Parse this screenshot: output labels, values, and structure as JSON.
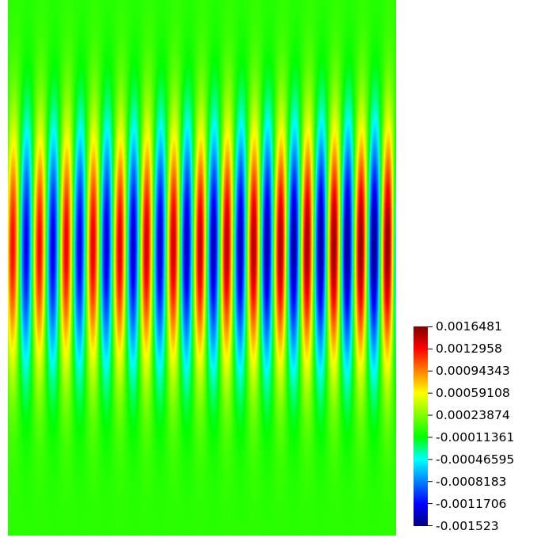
{
  "chart_data": {
    "type": "heatmap",
    "title": "",
    "xlabel": "",
    "ylabel": "",
    "field": {
      "pattern": "vertical wave fringes",
      "wavelength_columns": 14.5,
      "envelope_center": 0.46,
      "envelope_width": 0.22,
      "amplitude_trend": "increases toward right edge"
    },
    "colorbar": {
      "min": -0.001523,
      "max": 0.0016481,
      "tick_labels": [
        "0.0016481",
        "0.0012958",
        "0.00094343",
        "0.00059108",
        "0.00023874",
        "-0.00011361",
        "-0.00046595",
        "-0.0008183",
        "-0.0011706",
        "-0.001523"
      ],
      "colormap": [
        "#00007f",
        "#0000ff",
        "#0080ff",
        "#00ffff",
        "#00ff00",
        "#80ff00",
        "#ffff00",
        "#ff8000",
        "#ff0000",
        "#7f0000"
      ]
    }
  }
}
